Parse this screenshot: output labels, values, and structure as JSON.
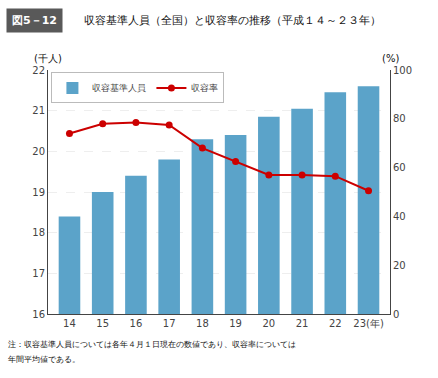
{
  "chart_data": {
    "type": "bar",
    "title": "収容基準人員（全国）と収容率の推移（平成１４～２３年）",
    "annotations": [
      "図5－12",
      "注：収容基準人員については各年４月１日現在の数値であり、収容率については",
      "年間平均値である。"
    ],
    "categories": [
      "14",
      "15",
      "16",
      "17",
      "18",
      "19",
      "20",
      "21",
      "22",
      "23(年)"
    ],
    "series": [
      {
        "name": "収容基準人員",
        "type": "bar",
        "color": "#5ba3c9",
        "values": [
          18.4,
          19.0,
          19.4,
          19.8,
          20.3,
          20.4,
          20.85,
          21.05,
          21.45,
          21.6
        ]
      },
      {
        "name": "収容率",
        "type": "line",
        "axis": "y2",
        "color": "#cc0000",
        "marker": "circle",
        "values": [
          74.0,
          78.0,
          78.5,
          77.5,
          68.0,
          62.5,
          57.0,
          57.0,
          56.5,
          50.5
        ]
      }
    ],
    "ylabel": "(千人)",
    "y2label": "(%)",
    "ylim": [
      16,
      22
    ],
    "yticks": [
      16,
      17,
      18,
      19,
      20,
      21,
      22
    ],
    "y2lim": [
      0,
      100
    ],
    "y2ticks": [
      0,
      20,
      40,
      60,
      80,
      100
    ],
    "grid": true,
    "legend": "upper left"
  }
}
